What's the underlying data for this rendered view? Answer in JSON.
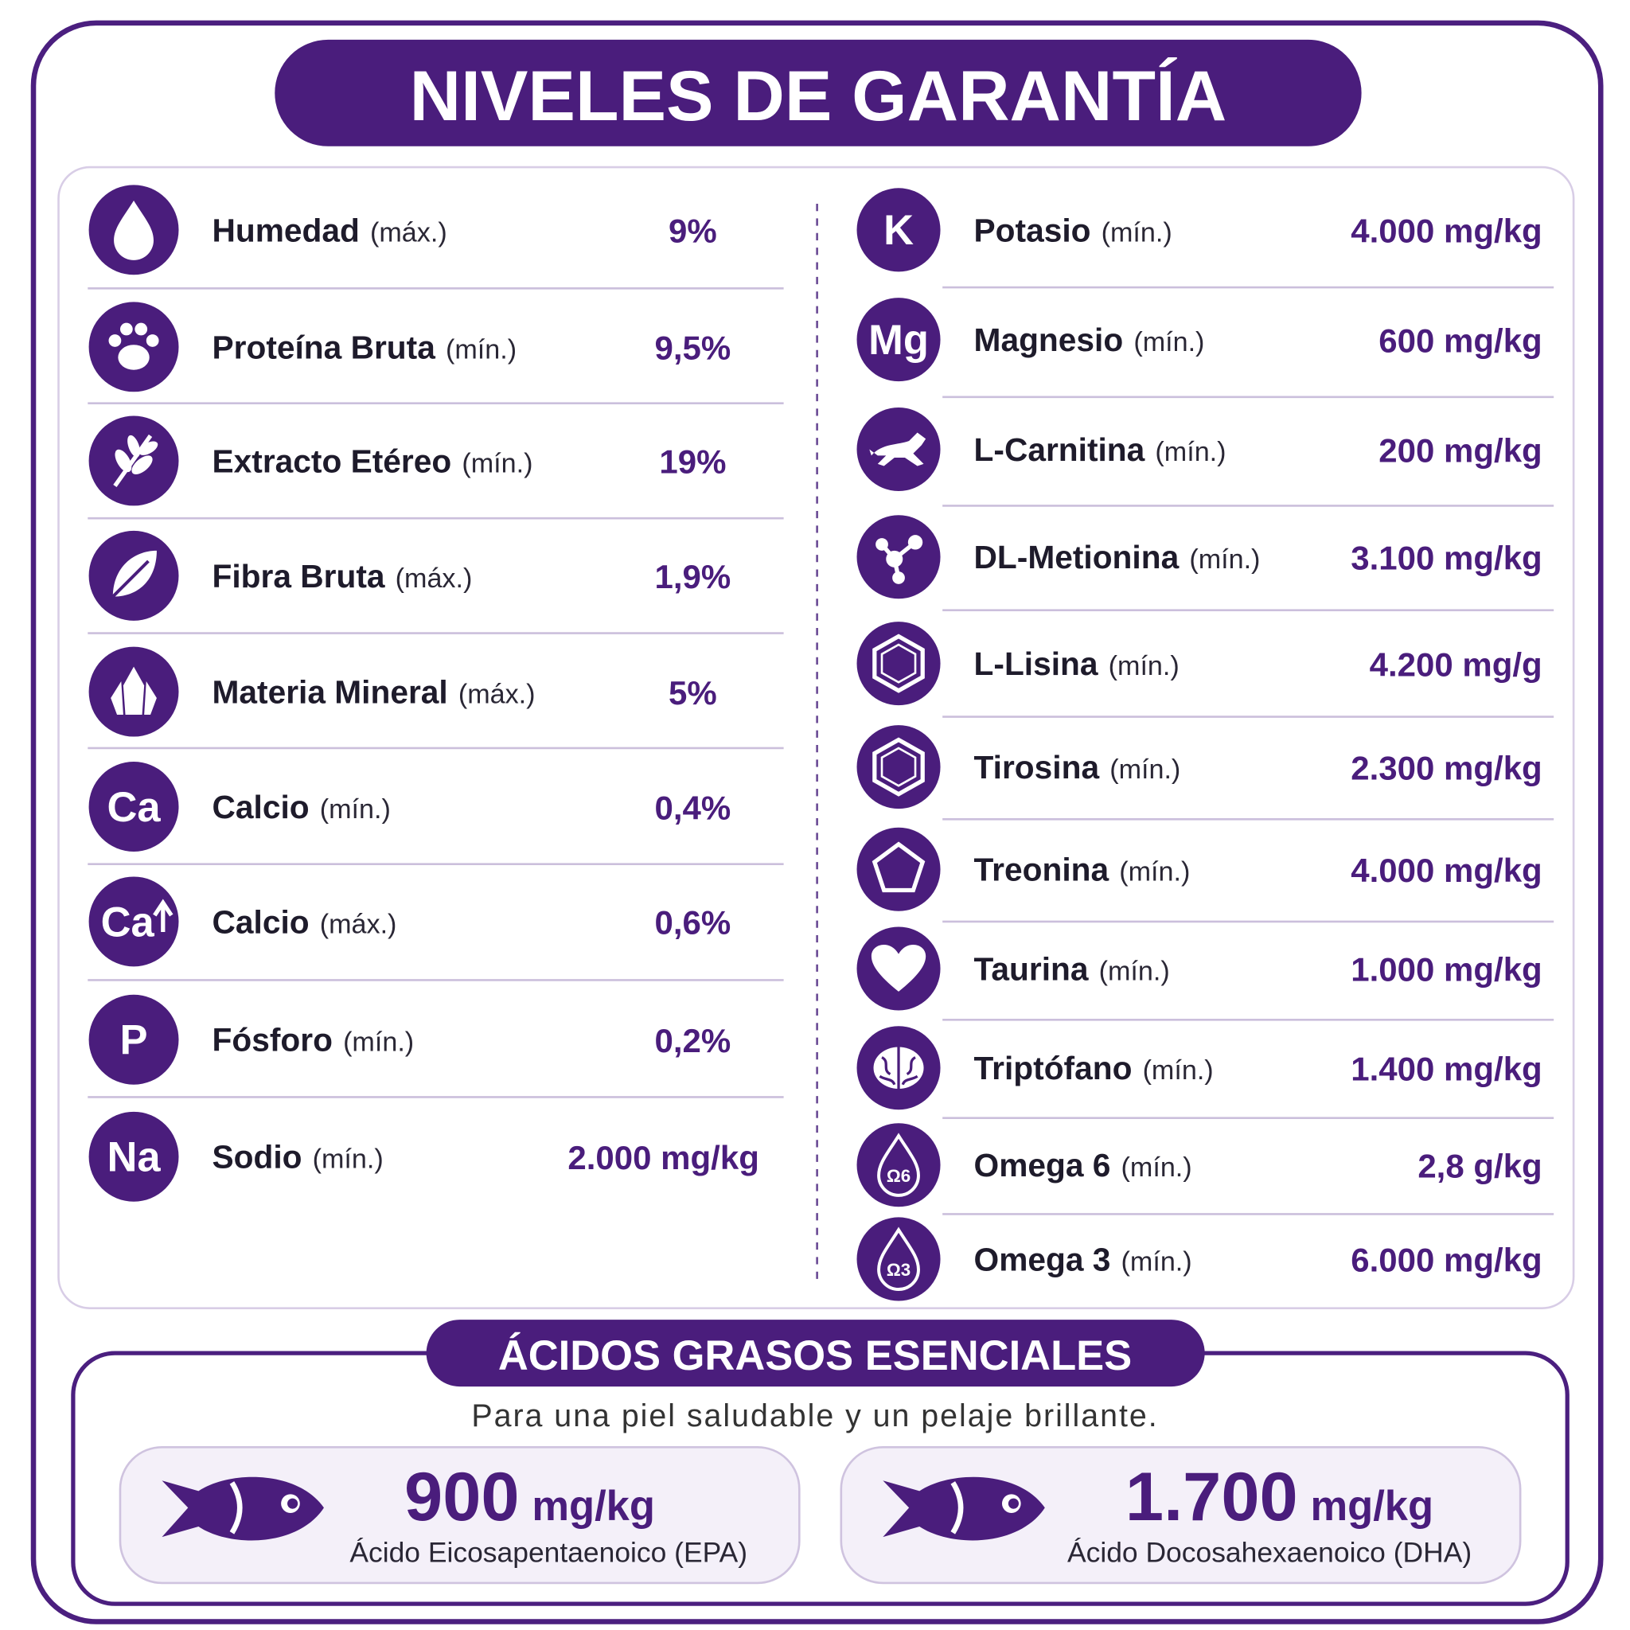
{
  "title": "NIVELES DE GARANTÍA",
  "left": [
    {
      "name": "Humedad",
      "qualifier": "(máx.)",
      "value": "9%"
    },
    {
      "name": "Proteína Bruta",
      "qualifier": "(mín.)",
      "value": "9,5%"
    },
    {
      "name": "Extracto Etéreo",
      "qualifier": "(mín.)",
      "value": "19%"
    },
    {
      "name": "Fibra Bruta",
      "qualifier": "(máx.)",
      "value": "1,9%"
    },
    {
      "name": "Materia Mineral",
      "qualifier": "(máx.)",
      "value": "5%"
    },
    {
      "icon": "Ca",
      "name": "Calcio",
      "qualifier": "(mín.)",
      "value": "0,4%"
    },
    {
      "icon": "Ca",
      "name": "Calcio",
      "qualifier": "(máx.)",
      "value": "0,6%"
    },
    {
      "icon": "P",
      "name": "Fósforo",
      "qualifier": "(mín.)",
      "value": "0,2%"
    },
    {
      "icon": "Na",
      "name": "Sodio",
      "qualifier": "(mín.)",
      "value": "2.000 mg/kg"
    }
  ],
  "right": [
    {
      "icon": "K",
      "name": "Potasio",
      "qualifier": "(mín.)",
      "value": "4.000 mg/kg"
    },
    {
      "icon": "Mg",
      "name": "Magnesio",
      "qualifier": "(mín.)",
      "value": "600 mg/kg"
    },
    {
      "name": "L-Carnitina",
      "qualifier": "(mín.)",
      "value": "200 mg/kg"
    },
    {
      "name": "DL-Metionina",
      "qualifier": "(mín.)",
      "value": "3.100 mg/kg"
    },
    {
      "name": "L-Lisina",
      "qualifier": "(mín.)",
      "value": "4.200 mg/g"
    },
    {
      "name": "Tirosina",
      "qualifier": "(mín.)",
      "value": "2.300 mg/kg"
    },
    {
      "name": "Treonina",
      "qualifier": "(mín.)",
      "value": "4.000 mg/kg"
    },
    {
      "name": "Taurina",
      "qualifier": "(mín.)",
      "value": "1.000 mg/kg"
    },
    {
      "name": "Triptófano",
      "qualifier": "(mín.)",
      "value": "1.400 mg/kg"
    },
    {
      "icon": "Ω6",
      "name": "Omega 6",
      "qualifier": "(mín.)",
      "value": "2,8 g/kg"
    },
    {
      "icon": "Ω3",
      "name": "Omega 3",
      "qualifier": "(mín.)",
      "value": "6.000 mg/kg"
    }
  ],
  "section": {
    "title": "ÁCIDOS GRASOS ESENCIALES",
    "subtitle": "Para una piel saludable y un pelaje brillante.",
    "cards": [
      {
        "value": "900",
        "unit": "mg/kg",
        "name": "Ácido Eicosapentaenoico (EPA)"
      },
      {
        "value": "1.700",
        "unit": "mg/kg",
        "name": "Ácido Docosahexaenoico (DHA)"
      }
    ]
  }
}
